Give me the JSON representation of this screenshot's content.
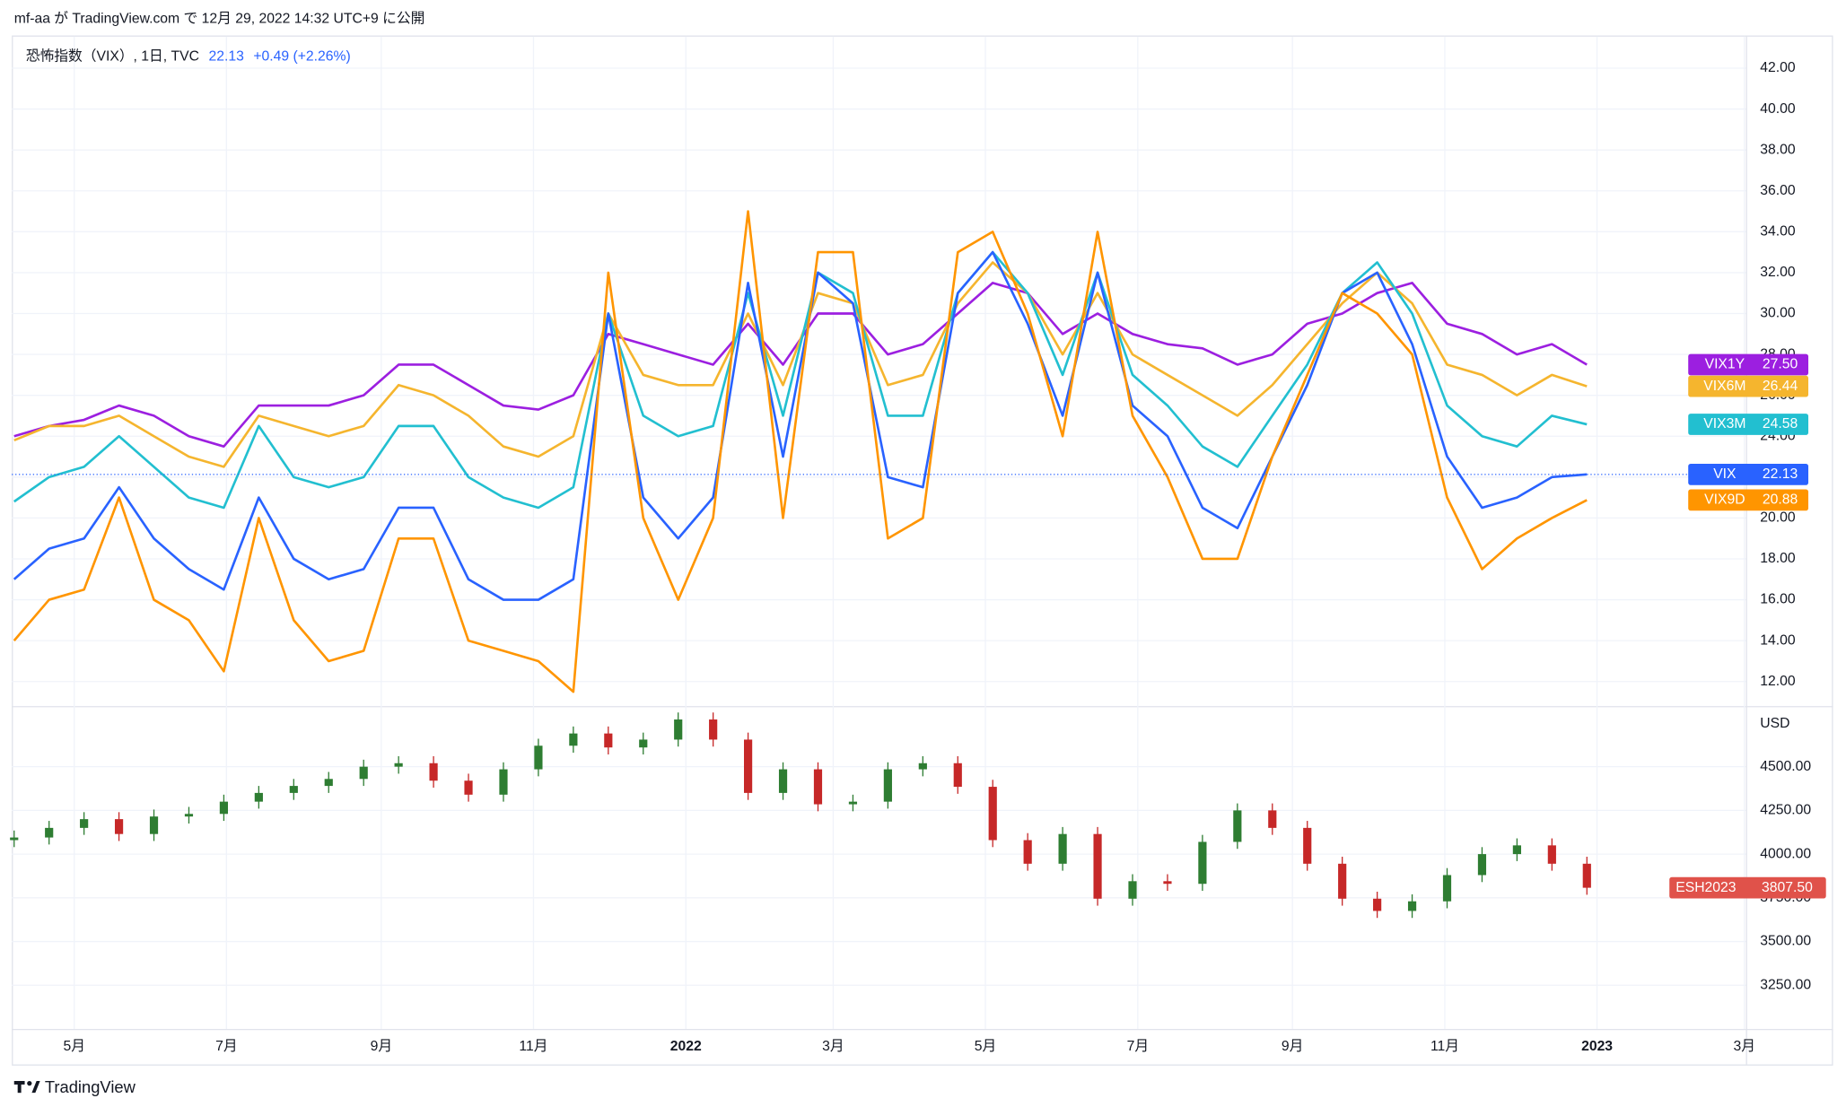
{
  "header": {
    "title": "mf-aa が TradingView.com で 12月 29, 2022 14:32 UTC+9 に公開"
  },
  "footer": {
    "brand": "TradingView"
  },
  "chart_data": [
    {
      "type": "line",
      "title": "恐怖指数（VIX）, 1日, TVC",
      "title_value": "22.13",
      "title_change": "+0.49 (+2.26%)",
      "x": [
        0,
        2,
        4,
        6,
        8,
        10,
        12,
        14,
        16,
        18,
        20,
        22,
        24,
        26,
        28,
        30,
        32,
        34,
        36,
        38,
        40,
        42,
        44,
        46,
        48,
        50,
        52,
        54,
        56,
        58,
        60,
        62,
        64,
        66,
        68,
        70,
        72,
        74,
        76,
        78,
        80,
        82,
        84,
        86,
        88,
        90
      ],
      "xlim": [
        0,
        99.1
      ],
      "xticks": [
        {
          "value": 3.44,
          "label": "5月"
        },
        {
          "value": 12.15,
          "label": "7月"
        },
        {
          "value": 21.01,
          "label": "9月"
        },
        {
          "value": 29.72,
          "label": "11月"
        },
        {
          "value": 38.44,
          "label": "2022"
        },
        {
          "value": 46.87,
          "label": "3月"
        },
        {
          "value": 55.58,
          "label": "5月"
        },
        {
          "value": 64.3,
          "label": "7月"
        },
        {
          "value": 73.15,
          "label": "9月"
        },
        {
          "value": 81.87,
          "label": "11月"
        },
        {
          "value": 90.58,
          "label": "2023"
        },
        {
          "value": 99.01,
          "label": "3月"
        }
      ],
      "ylim": [
        10.8,
        43.6
      ],
      "yticks": [
        {
          "value": 12,
          "label": "12.00"
        },
        {
          "value": 14,
          "label": "14.00"
        },
        {
          "value": 16,
          "label": "16.00"
        },
        {
          "value": 18,
          "label": "18.00"
        },
        {
          "value": 20,
          "label": "20.00"
        },
        {
          "value": 22,
          "label": "22.00"
        },
        {
          "value": 24,
          "label": "24.00"
        },
        {
          "value": 26,
          "label": "26.00"
        },
        {
          "value": 28,
          "label": "28.00"
        },
        {
          "value": 30,
          "label": "30.00"
        },
        {
          "value": 32,
          "label": "32.00"
        },
        {
          "value": 34,
          "label": "34.00"
        },
        {
          "value": 36,
          "label": "36.00"
        },
        {
          "value": 38,
          "label": "38.00"
        },
        {
          "value": 40,
          "label": "40.00"
        },
        {
          "value": 42,
          "label": "42.00"
        }
      ],
      "grid": true,
      "series": [
        {
          "name": "VIX1Y",
          "color": "#9c1fe0",
          "last_label": "27.50",
          "values": [
            24,
            24.5,
            24.8,
            25.5,
            25,
            24,
            23.5,
            25.5,
            25.5,
            25.5,
            26,
            27.5,
            27.5,
            26.5,
            25.5,
            25.3,
            26,
            29,
            28.5,
            28,
            27.5,
            29.5,
            27.5,
            30,
            30,
            28,
            28.5,
            30,
            31.5,
            31,
            29,
            30,
            29,
            28.5,
            28.3,
            27.5,
            28,
            29.5,
            30,
            31,
            31.5,
            29.5,
            29,
            28,
            28.5,
            27.5
          ]
        },
        {
          "name": "VIX6M",
          "color": "#f5b52e",
          "last_label": "26.44",
          "values": [
            23.8,
            24.5,
            24.5,
            25,
            24,
            23,
            22.5,
            25,
            24.5,
            24,
            24.5,
            26.5,
            26,
            25,
            23.5,
            23,
            24,
            30,
            27,
            26.5,
            26.5,
            30,
            26.5,
            31,
            30.5,
            26.5,
            27,
            30.5,
            32.5,
            31,
            28,
            31,
            28,
            27,
            26,
            25,
            26.5,
            28.5,
            30.5,
            32,
            30.5,
            27.5,
            27,
            26,
            27,
            26.44
          ]
        },
        {
          "name": "VIX3M",
          "color": "#22bfd0",
          "last_label": "24.58",
          "values": [
            20.8,
            22,
            22.5,
            24,
            22.5,
            21,
            20.5,
            24.5,
            22,
            21.5,
            22,
            24.5,
            24.5,
            22,
            21,
            20.5,
            21.5,
            30,
            25,
            24,
            24.5,
            31,
            25,
            32,
            31,
            25,
            25,
            31,
            33,
            31,
            27,
            32,
            27,
            25.5,
            23.5,
            22.5,
            25,
            27.5,
            31,
            32.5,
            30,
            25.5,
            24,
            23.5,
            25,
            24.58
          ]
        },
        {
          "name": "VIX",
          "color": "#2962ff",
          "last_label": "22.13",
          "values": [
            17,
            18.5,
            19,
            21.5,
            19,
            17.5,
            16.5,
            21,
            18,
            17,
            17.5,
            20.5,
            20.5,
            17,
            16,
            16,
            17,
            30,
            21,
            19,
            21,
            31.5,
            23,
            32,
            30.5,
            22,
            21.5,
            31,
            33,
            29.5,
            25,
            32,
            25.5,
            24,
            20.5,
            19.5,
            23,
            26.5,
            31,
            32,
            28.5,
            23,
            20.5,
            21,
            22,
            22.13
          ]
        },
        {
          "name": "VIX9D",
          "color": "#ff9500",
          "last_label": "20.88",
          "values": [
            14,
            16,
            16.5,
            21,
            16,
            15,
            12.5,
            20,
            15,
            13,
            13.5,
            19,
            19,
            14,
            13.5,
            13,
            11.5,
            32,
            20,
            16,
            20,
            35,
            20,
            33,
            33,
            19,
            20,
            33,
            34,
            30,
            24,
            34,
            25,
            22,
            18,
            18,
            23,
            27,
            31,
            30,
            28,
            21,
            17.5,
            19,
            20,
            20.88
          ]
        }
      ]
    },
    {
      "type": "candlestick",
      "name": "ESH2023",
      "last_label": "3807.50",
      "unit": "USD",
      "color_up": "#2e7d32",
      "color_down": "#c62828",
      "tag_color": "#e0524a",
      "ylim": [
        3000,
        4840
      ],
      "yticks": [
        {
          "value": 3250,
          "label": "3250.00"
        },
        {
          "value": 3500,
          "label": "3500.00"
        },
        {
          "value": 3750,
          "label": "3750.00"
        },
        {
          "value": 4000,
          "label": "4000.00"
        },
        {
          "value": 4250,
          "label": "4250.00"
        },
        {
          "value": 4500,
          "label": "4500.00"
        }
      ],
      "open": [
        4080,
        4095,
        4150,
        4200,
        4115,
        4215,
        4230,
        4300,
        4350,
        4390,
        4430,
        4500,
        4520,
        4420,
        4340,
        4485,
        4620,
        4690,
        4610,
        4655,
        4770,
        4655,
        4350,
        4485,
        4285,
        4300,
        4485,
        4520,
        4385,
        4080,
        3945,
        4115,
        3745,
        3845,
        3830,
        4070,
        4250,
        4150,
        3945,
        3745,
        3675,
        3730,
        3880,
        4000,
        4050,
        3945
      ],
      "high": [
        4135,
        4190,
        4240,
        4240,
        4255,
        4270,
        4340,
        4390,
        4430,
        4470,
        4540,
        4560,
        4560,
        4460,
        4525,
        4660,
        4730,
        4730,
        4695,
        4810,
        4810,
        4695,
        4525,
        4525,
        4340,
        4525,
        4560,
        4560,
        4425,
        4120,
        4155,
        4155,
        3885,
        3885,
        4110,
        4290,
        4290,
        4190,
        3985,
        3785,
        3770,
        3920,
        4040,
        4090,
        4090,
        3985
      ],
      "low": [
        4040,
        4055,
        4110,
        4075,
        4075,
        4175,
        4190,
        4260,
        4310,
        4350,
        4390,
        4460,
        4380,
        4300,
        4300,
        4445,
        4580,
        4570,
        4570,
        4615,
        4615,
        4310,
        4310,
        4245,
        4245,
        4260,
        4445,
        4345,
        4040,
        3905,
        3905,
        3705,
        3705,
        3790,
        3790,
        4030,
        4110,
        3905,
        3705,
        3635,
        3635,
        3690,
        3840,
        3960,
        3905,
        3767.5
      ],
      "close": [
        4095,
        4150,
        4200,
        4115,
        4215,
        4230,
        4300,
        4350,
        4390,
        4430,
        4500,
        4520,
        4420,
        4340,
        4485,
        4620,
        4690,
        4610,
        4655,
        4770,
        4655,
        4350,
        4485,
        4285,
        4300,
        4485,
        4520,
        4385,
        4080,
        3945,
        4115,
        3745,
        3845,
        3830,
        4070,
        4250,
        4150,
        3945,
        3745,
        3675,
        3730,
        3880,
        4000,
        4050,
        3945,
        3807.5
      ]
    }
  ]
}
